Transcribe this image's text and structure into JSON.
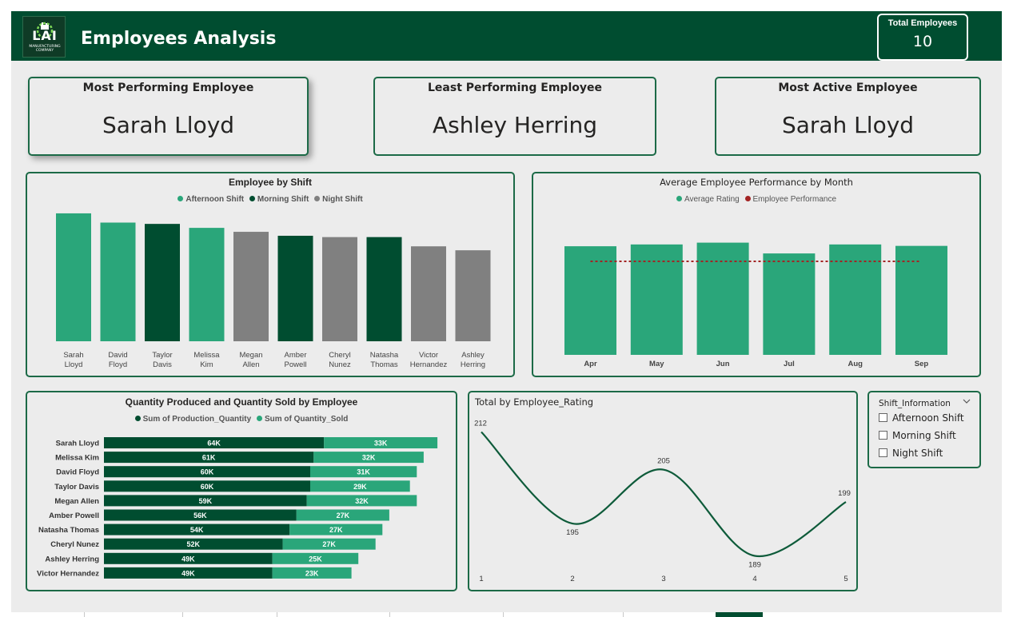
{
  "header": {
    "title": "Employees Analysis",
    "logo_text": "LAI",
    "logo_sub": "MANUFACTURING COMPANY",
    "total_label": "Total Employees",
    "total_value": "10"
  },
  "kpis": [
    {
      "label": "Most Performing Employee",
      "value": "Sarah Lloyd"
    },
    {
      "label": "Least Performing Employee",
      "value": "Ashley Herring"
    },
    {
      "label": "Most Active Employee",
      "value": "Sarah Lloyd"
    }
  ],
  "colors": {
    "brand_dark": "#004d30",
    "afternoon": "#2aa67a",
    "morning": "#004d30",
    "night": "#808080",
    "performance_line": "#a32424"
  },
  "slicer": {
    "title": "Shift_Information",
    "options": [
      "Afternoon Shift",
      "Morning Shift",
      "Night Shift"
    ]
  },
  "chart_data": [
    {
      "type": "bar",
      "title": "Employee by Shift",
      "legend": [
        "Afternoon Shift",
        "Morning Shift",
        "Night Shift"
      ],
      "categories": [
        [
          "Sarah",
          "Lloyd"
        ],
        [
          "David",
          "Floyd"
        ],
        [
          "Taylor",
          "Davis"
        ],
        [
          "Melissa",
          "Kim"
        ],
        [
          "Megan",
          "Allen"
        ],
        [
          "Amber",
          "Powell"
        ],
        [
          "Cheryl",
          "Nunez"
        ],
        [
          "Natasha",
          "Thomas"
        ],
        [
          "Victor",
          "Hernandez"
        ],
        [
          "Ashley",
          "Herring"
        ]
      ],
      "values": [
        97,
        90,
        89,
        86,
        83,
        80,
        79,
        79,
        72,
        69
      ],
      "shift": [
        "Afternoon Shift",
        "Afternoon Shift",
        "Morning Shift",
        "Afternoon Shift",
        "Night Shift",
        "Morning Shift",
        "Night Shift",
        "Morning Shift",
        "Night Shift",
        "Night Shift"
      ],
      "ylim": [
        0,
        100
      ]
    },
    {
      "type": "bar",
      "title": "Average Employee Performance by Month",
      "legend": [
        "Average Rating",
        "Employee Performance"
      ],
      "categories": [
        "Apr",
        "May",
        "Jun",
        "Jul",
        "Aug",
        "Sep"
      ],
      "series": [
        {
          "name": "Average Rating",
          "values": [
            3.02,
            3.07,
            3.12,
            2.82,
            3.07,
            3.03
          ]
        },
        {
          "name": "Employee Performance",
          "values": [
            2.6,
            2.6,
            2.6,
            2.6,
            2.6,
            2.6
          ]
        }
      ],
      "ylim": [
        0,
        4
      ]
    },
    {
      "type": "bar",
      "title": "Quantity Produced and Quantity Sold by Employee",
      "legend": [
        "Sum of Production_Quantity",
        "Sum of Quantity_Sold"
      ],
      "categories": [
        "Sarah Lloyd",
        "Melissa Kim",
        "David Floyd",
        "Taylor Davis",
        "Megan Allen",
        "Amber Powell",
        "Natasha Thomas",
        "Cheryl Nunez",
        "Ashley Herring",
        "Victor Hernandez"
      ],
      "series": [
        {
          "name": "Sum of Production_Quantity",
          "values": [
            64,
            61,
            60,
            60,
            59,
            56,
            54,
            52,
            49,
            49
          ],
          "labels": [
            "64K",
            "61K",
            "60K",
            "60K",
            "59K",
            "56K",
            "54K",
            "52K",
            "49K",
            "49K"
          ]
        },
        {
          "name": "Sum of Quantity_Sold",
          "values": [
            33,
            32,
            31,
            29,
            32,
            27,
            27,
            27,
            25,
            23
          ],
          "labels": [
            "33K",
            "32K",
            "31K",
            "29K",
            "32K",
            "27K",
            "27K",
            "27K",
            "25K",
            "23K"
          ]
        }
      ],
      "stacked": true,
      "orientation": "horizontal",
      "xlim": [
        0,
        100
      ]
    },
    {
      "type": "line",
      "title": "Total by Employee_Rating",
      "x": [
        1,
        2,
        3,
        4,
        5
      ],
      "values": [
        212,
        195,
        205,
        189,
        199
      ],
      "labels": [
        "212",
        "195",
        "205",
        "189",
        "199"
      ],
      "ylim": [
        187,
        214
      ]
    }
  ]
}
